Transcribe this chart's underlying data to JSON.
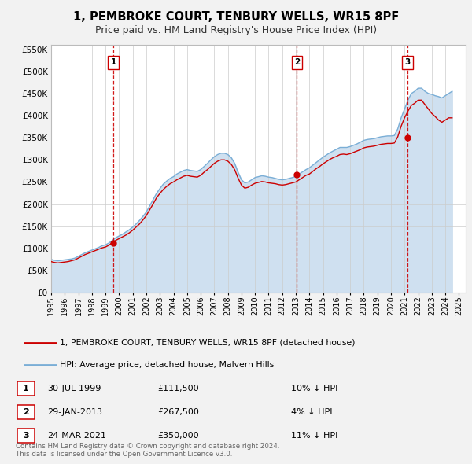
{
  "title": "1, PEMBROKE COURT, TENBURY WELLS, WR15 8PF",
  "subtitle": "Price paid vs. HM Land Registry's House Price Index (HPI)",
  "ylim": [
    0,
    560000
  ],
  "yticks": [
    0,
    50000,
    100000,
    150000,
    200000,
    250000,
    300000,
    350000,
    400000,
    450000,
    500000,
    550000
  ],
  "xlim_start": 1995.0,
  "xlim_end": 2025.5,
  "sale_color": "#cc0000",
  "hpi_color": "#7aaed6",
  "hpi_fill_color": "#cfe0f0",
  "vline_color": "#cc0000",
  "background_color": "#f2f2f2",
  "plot_bg_color": "#ffffff",
  "grid_color": "#cccccc",
  "sale_label": "1, PEMBROKE COURT, TENBURY WELLS, WR15 8PF (detached house)",
  "hpi_label": "HPI: Average price, detached house, Malvern Hills",
  "title_fontsize": 10.5,
  "subtitle_fontsize": 9.0,
  "transactions": [
    {
      "num": 1,
      "year": 1999.57,
      "price": 111500
    },
    {
      "num": 2,
      "year": 2013.08,
      "price": 267500
    },
    {
      "num": 3,
      "year": 2021.22,
      "price": 350000
    }
  ],
  "hpi_years": [
    1995.0,
    1995.25,
    1995.5,
    1995.75,
    1996.0,
    1996.25,
    1996.5,
    1996.75,
    1997.0,
    1997.25,
    1997.5,
    1997.75,
    1998.0,
    1998.25,
    1998.5,
    1998.75,
    1999.0,
    1999.25,
    1999.5,
    1999.75,
    2000.0,
    2000.25,
    2000.5,
    2000.75,
    2001.0,
    2001.25,
    2001.5,
    2001.75,
    2002.0,
    2002.25,
    2002.5,
    2002.75,
    2003.0,
    2003.25,
    2003.5,
    2003.75,
    2004.0,
    2004.25,
    2004.5,
    2004.75,
    2005.0,
    2005.25,
    2005.5,
    2005.75,
    2006.0,
    2006.25,
    2006.5,
    2006.75,
    2007.0,
    2007.25,
    2007.5,
    2007.75,
    2008.0,
    2008.25,
    2008.5,
    2008.75,
    2009.0,
    2009.25,
    2009.5,
    2009.75,
    2010.0,
    2010.25,
    2010.5,
    2010.75,
    2011.0,
    2011.25,
    2011.5,
    2011.75,
    2012.0,
    2012.25,
    2012.5,
    2012.75,
    2013.0,
    2013.25,
    2013.5,
    2013.75,
    2014.0,
    2014.25,
    2014.5,
    2014.75,
    2015.0,
    2015.25,
    2015.5,
    2015.75,
    2016.0,
    2016.25,
    2016.5,
    2016.75,
    2017.0,
    2017.25,
    2017.5,
    2017.75,
    2018.0,
    2018.25,
    2018.5,
    2018.75,
    2019.0,
    2019.25,
    2019.5,
    2019.75,
    2020.0,
    2020.25,
    2020.5,
    2020.75,
    2021.0,
    2021.25,
    2021.5,
    2021.75,
    2022.0,
    2022.25,
    2022.5,
    2022.75,
    2023.0,
    2023.25,
    2023.5,
    2023.75,
    2024.0,
    2024.25,
    2024.5
  ],
  "hpi_vals": [
    75000,
    73000,
    72000,
    73000,
    74000,
    75000,
    76000,
    78000,
    82000,
    86000,
    90000,
    93000,
    96000,
    99000,
    102000,
    106000,
    108000,
    112000,
    118000,
    124000,
    128000,
    132000,
    137000,
    142000,
    148000,
    155000,
    163000,
    172000,
    182000,
    196000,
    210000,
    224000,
    235000,
    245000,
    252000,
    258000,
    262000,
    268000,
    272000,
    276000,
    278000,
    276000,
    275000,
    274000,
    278000,
    285000,
    292000,
    300000,
    307000,
    312000,
    315000,
    315000,
    312000,
    305000,
    292000,
    272000,
    255000,
    248000,
    250000,
    255000,
    260000,
    262000,
    264000,
    263000,
    261000,
    260000,
    258000,
    256000,
    255000,
    256000,
    258000,
    260000,
    263000,
    268000,
    273000,
    278000,
    282000,
    288000,
    294000,
    300000,
    306000,
    311000,
    316000,
    320000,
    324000,
    328000,
    328000,
    328000,
    330000,
    333000,
    336000,
    340000,
    344000,
    346000,
    347000,
    348000,
    350000,
    352000,
    353000,
    354000,
    354000,
    355000,
    370000,
    395000,
    415000,
    435000,
    450000,
    455000,
    462000,
    462000,
    455000,
    450000,
    448000,
    445000,
    443000,
    440000,
    445000,
    450000,
    455000
  ],
  "price_years": [
    1995.0,
    1995.25,
    1995.5,
    1995.75,
    1996.0,
    1996.25,
    1996.5,
    1996.75,
    1997.0,
    1997.25,
    1997.5,
    1997.75,
    1998.0,
    1998.25,
    1998.5,
    1998.75,
    1999.0,
    1999.25,
    1999.5,
    1999.75,
    2000.0,
    2000.25,
    2000.5,
    2000.75,
    2001.0,
    2001.25,
    2001.5,
    2001.75,
    2002.0,
    2002.25,
    2002.5,
    2002.75,
    2003.0,
    2003.25,
    2003.5,
    2003.75,
    2004.0,
    2004.25,
    2004.5,
    2004.75,
    2005.0,
    2005.25,
    2005.5,
    2005.75,
    2006.0,
    2006.25,
    2006.5,
    2006.75,
    2007.0,
    2007.25,
    2007.5,
    2007.75,
    2008.0,
    2008.25,
    2008.5,
    2008.75,
    2009.0,
    2009.25,
    2009.5,
    2009.75,
    2010.0,
    2010.25,
    2010.5,
    2010.75,
    2011.0,
    2011.25,
    2011.5,
    2011.75,
    2012.0,
    2012.25,
    2012.5,
    2012.75,
    2013.0,
    2013.25,
    2013.5,
    2013.75,
    2014.0,
    2014.25,
    2014.5,
    2014.75,
    2015.0,
    2015.25,
    2015.5,
    2015.75,
    2016.0,
    2016.25,
    2016.5,
    2016.75,
    2017.0,
    2017.25,
    2017.5,
    2017.75,
    2018.0,
    2018.25,
    2018.5,
    2018.75,
    2019.0,
    2019.25,
    2019.5,
    2019.75,
    2020.0,
    2020.25,
    2020.5,
    2020.75,
    2021.0,
    2021.25,
    2021.5,
    2021.75,
    2022.0,
    2022.25,
    2022.5,
    2022.75,
    2023.0,
    2023.25,
    2023.5,
    2023.75,
    2024.0,
    2024.25,
    2024.5
  ],
  "price_vals": [
    70000,
    68000,
    67000,
    68000,
    69000,
    70000,
    72000,
    74000,
    78000,
    82000,
    86000,
    89000,
    92000,
    95000,
    98000,
    101000,
    103000,
    107000,
    113000,
    118000,
    122000,
    126000,
    130000,
    135000,
    141000,
    148000,
    155000,
    164000,
    174000,
    187000,
    200000,
    214000,
    224000,
    233000,
    240000,
    246000,
    250000,
    255000,
    259000,
    263000,
    265000,
    263000,
    262000,
    261000,
    265000,
    272000,
    278000,
    285000,
    292000,
    297000,
    300000,
    300000,
    297000,
    290000,
    278000,
    259000,
    243000,
    236000,
    238000,
    243000,
    247000,
    249000,
    251000,
    250000,
    248000,
    247000,
    246000,
    244000,
    243000,
    244000,
    246000,
    248000,
    250000,
    255000,
    260000,
    265000,
    268000,
    274000,
    280000,
    285000,
    291000,
    296000,
    301000,
    305000,
    308000,
    312000,
    313000,
    312000,
    314000,
    317000,
    320000,
    323000,
    327000,
    329000,
    330000,
    331000,
    333000,
    335000,
    336000,
    337000,
    337000,
    338000,
    352000,
    376000,
    395000,
    410000,
    423000,
    428000,
    435000,
    435000,
    425000,
    415000,
    405000,
    398000,
    390000,
    385000,
    390000,
    395000,
    395000
  ],
  "table_rows": [
    {
      "num": 1,
      "date": "30-JUL-1999",
      "price": "£111,500",
      "pct_hpi": "10% ↓ HPI"
    },
    {
      "num": 2,
      "date": "29-JAN-2013",
      "price": "£267,500",
      "pct_hpi": "4% ↓ HPI"
    },
    {
      "num": 3,
      "date": "24-MAR-2021",
      "price": "£350,000",
      "pct_hpi": "11% ↓ HPI"
    }
  ],
  "footer_line1": "Contains HM Land Registry data © Crown copyright and database right 2024.",
  "footer_line2": "This data is licensed under the Open Government Licence v3.0."
}
